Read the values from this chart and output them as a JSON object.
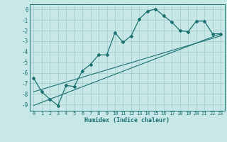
{
  "xlabel": "Humidex (Indice chaleur)",
  "bg_color": "#c8e8e8",
  "line_color": "#1a7070",
  "grid_color": "#a0c8c8",
  "xlim": [
    -0.5,
    23.5
  ],
  "ylim": [
    -9.6,
    0.5
  ],
  "xticks": [
    0,
    1,
    2,
    3,
    4,
    5,
    6,
    7,
    8,
    9,
    10,
    11,
    12,
    13,
    14,
    15,
    16,
    17,
    18,
    19,
    20,
    21,
    22,
    23
  ],
  "yticks": [
    0,
    -1,
    -2,
    -3,
    -4,
    -5,
    -6,
    -7,
    -8,
    -9
  ],
  "main_x": [
    0,
    1,
    2,
    3,
    4,
    5,
    6,
    7,
    8,
    9,
    10,
    11,
    12,
    13,
    14,
    15,
    16,
    17,
    18,
    19,
    20,
    21,
    22,
    23
  ],
  "main_y": [
    -6.5,
    -7.8,
    -8.5,
    -9.1,
    -7.2,
    -7.3,
    -5.8,
    -5.2,
    -4.3,
    -4.3,
    -2.2,
    -3.1,
    -2.5,
    -0.9,
    -0.15,
    0.05,
    -0.6,
    -1.2,
    -2.0,
    -2.1,
    -1.1,
    -1.1,
    -2.3,
    -2.3
  ],
  "line2_x": [
    0,
    23
  ],
  "line2_y": [
    -7.8,
    -2.5
  ],
  "line3_x": [
    0,
    23
  ],
  "line3_y": [
    -9.1,
    -2.3
  ]
}
